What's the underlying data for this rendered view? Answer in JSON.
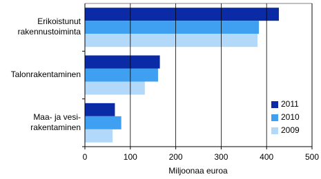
{
  "chart_data": {
    "type": "hbar",
    "categories": [
      "Erikoistunut\nrakennustoiminta",
      "Talonrakentaminen",
      "Maa- ja vesi-\nrakentaminen"
    ],
    "series": [
      {
        "name": "2011",
        "color": "#0b2ba6",
        "values": [
          427,
          165,
          66
        ]
      },
      {
        "name": "2010",
        "color": "#3f9ff0",
        "values": [
          383,
          161,
          80
        ]
      },
      {
        "name": "2009",
        "color": "#b3d9fa",
        "values": [
          380,
          132,
          61
        ]
      }
    ],
    "xlim": [
      0,
      500
    ],
    "xticks": [
      0,
      100,
      200,
      300,
      400,
      500
    ],
    "xlabel": "Miljoonaa euroa",
    "grid": true,
    "legend": "right"
  }
}
